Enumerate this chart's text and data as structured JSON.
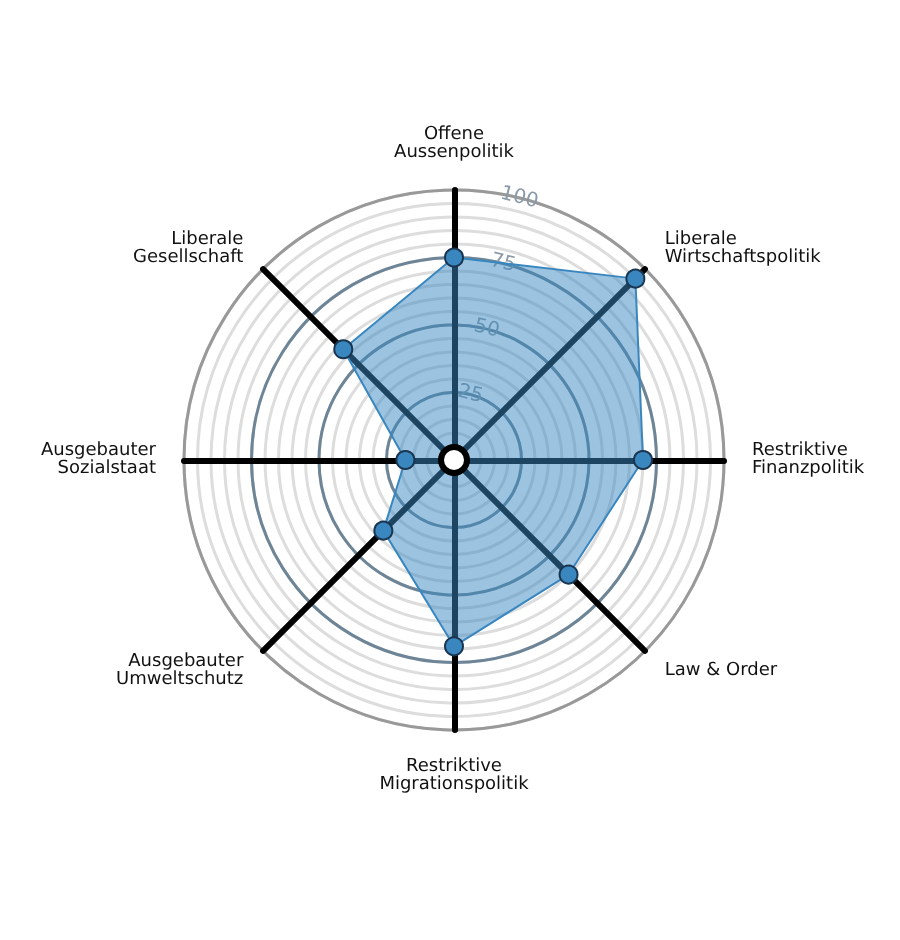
{
  "chart_data": {
    "type": "radar",
    "categories": [
      "Offene\nAussenpolitik",
      "Liberale\nWirtschaftspolitik",
      "Restriktive\nFinanzpolitik",
      "Law & Order",
      "Restriktive\nMigrationspolitik",
      "Ausgebauter\nUmweltschutz",
      "Ausgebauter\nSozialstaat",
      "Liberale\nGesellschaft"
    ],
    "series": [
      {
        "color": "#3a87c0",
        "values": [
          75,
          95,
          70,
          60,
          69,
          37,
          18,
          58
        ]
      }
    ],
    "ylim": [
      0,
      100
    ],
    "yticks": [
      25,
      50,
      75,
      100
    ],
    "grid": true,
    "marker": "circle"
  }
}
